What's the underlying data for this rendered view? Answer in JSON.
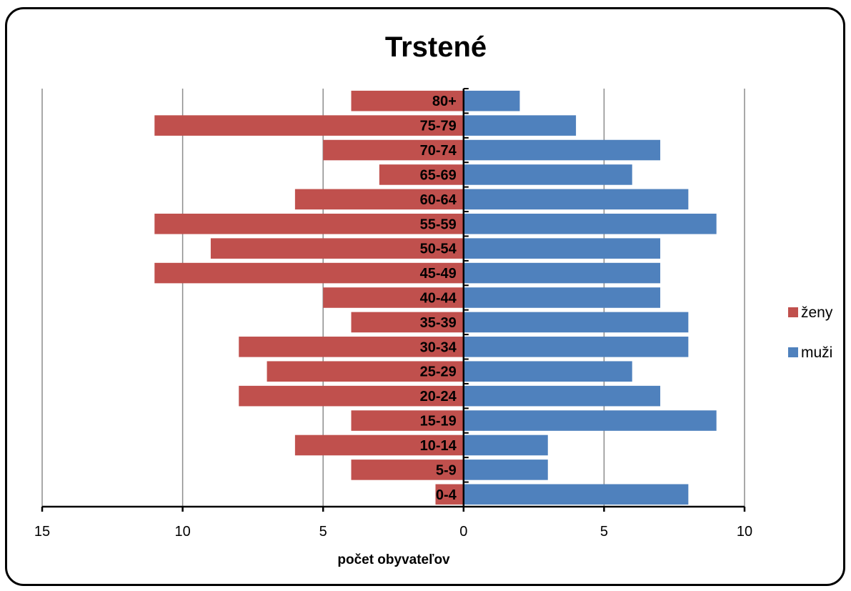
{
  "chart_data": {
    "type": "bar",
    "orientation": "horizontal-pyramid",
    "title": "Trstené",
    "xlabel": "počet obyvateľov",
    "categories": [
      "0-4",
      "5-9",
      "10-14",
      "15-19",
      "20-24",
      "25-29",
      "30-34",
      "35-39",
      "40-44",
      "45-49",
      "50-54",
      "55-59",
      "60-64",
      "65-69",
      "70-74",
      "75-79",
      "80+"
    ],
    "series": [
      {
        "name": "ženy",
        "color": "#c0504d",
        "side": "left",
        "values": [
          1,
          4,
          6,
          4,
          8,
          7,
          8,
          4,
          5,
          11,
          9,
          11,
          6,
          3,
          5,
          11,
          4
        ]
      },
      {
        "name": "muži",
        "color": "#4f81bd",
        "side": "right",
        "values": [
          8,
          3,
          3,
          9,
          7,
          6,
          8,
          8,
          7,
          7,
          7,
          9,
          8,
          6,
          7,
          4,
          2
        ]
      }
    ],
    "xlim": [
      -15,
      10
    ],
    "xticks": [
      {
        "value": -15,
        "label": "15"
      },
      {
        "value": -10,
        "label": "10"
      },
      {
        "value": -5,
        "label": "5"
      },
      {
        "value": 0,
        "label": "0"
      },
      {
        "value": 5,
        "label": "5"
      },
      {
        "value": 10,
        "label": "10"
      }
    ],
    "grid": true,
    "legend": "right"
  }
}
